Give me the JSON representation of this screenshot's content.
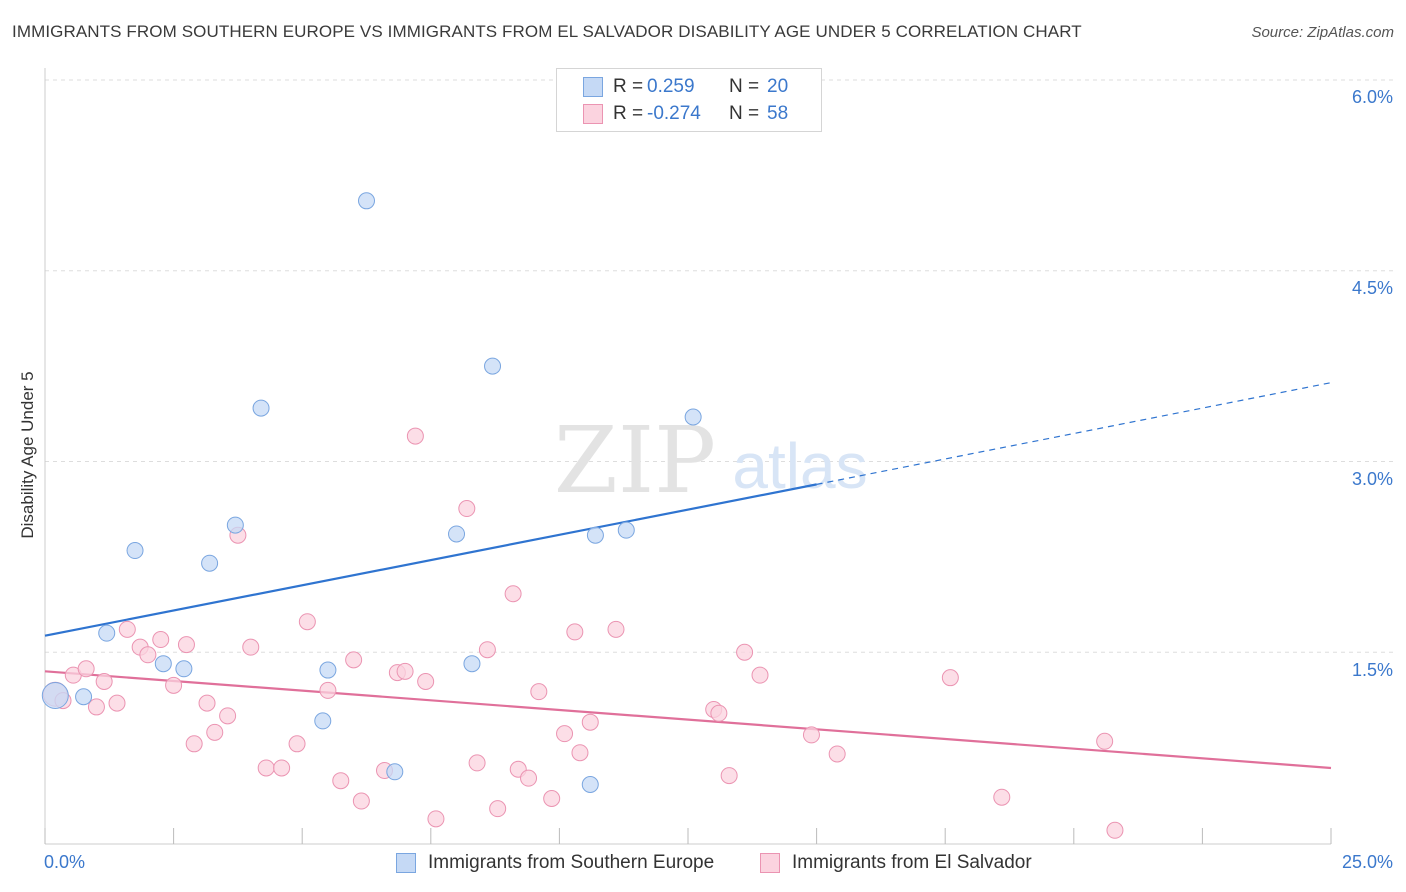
{
  "title": "IMMIGRANTS FROM SOUTHERN EUROPE VS IMMIGRANTS FROM EL SALVADOR DISABILITY AGE UNDER 5 CORRELATION CHART",
  "source": "Source: ZipAtlas.com",
  "watermark": {
    "zip": "ZIP",
    "atlas": "atlas"
  },
  "legend": [
    {
      "r_label": "R =",
      "r_value": "0.259",
      "n_label": "N =",
      "n_value": "20"
    },
    {
      "r_label": "R =",
      "r_value": "-0.274",
      "n_label": "N =",
      "n_value": "58"
    }
  ],
  "colors": {
    "series1_fill": "#c5d9f5",
    "series1_stroke": "#7aa6e0",
    "series1_line": "#2f74d0",
    "series2_fill": "#fbd3df",
    "series2_stroke": "#eb94b2",
    "series2_line": "#e0709a",
    "tick_text": "#3b78cc",
    "grid": "#dddddd"
  },
  "chart_data": {
    "type": "scatter",
    "ylabel": "Disability Age Under 5",
    "xlim": [
      0,
      25
    ],
    "ylim": [
      0,
      6.0
    ],
    "x_tick_labels": [
      "0.0%",
      "25.0%"
    ],
    "y_ticks": [
      1.5,
      3.0,
      4.5,
      6.0
    ],
    "y_tick_labels": [
      "1.5%",
      "3.0%",
      "4.5%",
      "6.0%"
    ],
    "grid": "horizontal dashed",
    "legend_position": "top-center",
    "series": [
      {
        "name": "Immigrants from Southern Europe",
        "points": [
          [
            0.2,
            1.16
          ],
          [
            0.75,
            1.15
          ],
          [
            1.2,
            1.65
          ],
          [
            1.75,
            2.3
          ],
          [
            2.3,
            1.41
          ],
          [
            2.7,
            1.37
          ],
          [
            3.2,
            2.2
          ],
          [
            3.7,
            2.5
          ],
          [
            4.2,
            3.42
          ],
          [
            5.4,
            0.96
          ],
          [
            5.5,
            1.36
          ],
          [
            6.25,
            5.05
          ],
          [
            6.8,
            0.56
          ],
          [
            8.0,
            2.43
          ],
          [
            8.3,
            1.41
          ],
          [
            8.7,
            3.75
          ],
          [
            10.6,
            0.46
          ],
          [
            10.7,
            2.42
          ],
          [
            11.3,
            2.46
          ],
          [
            12.6,
            3.35
          ]
        ],
        "trend": {
          "x1": 0,
          "y1": 1.63,
          "x2": 15,
          "y2": 2.82,
          "dashed_to_x": 25,
          "dashed_to_y": 3.62
        }
      },
      {
        "name": "Immigrants from El Salvador",
        "points": [
          [
            0.2,
            1.17
          ],
          [
            0.35,
            1.12
          ],
          [
            0.55,
            1.32
          ],
          [
            0.8,
            1.37
          ],
          [
            1.0,
            1.07
          ],
          [
            1.15,
            1.27
          ],
          [
            1.4,
            1.1
          ],
          [
            1.6,
            1.68
          ],
          [
            1.85,
            1.54
          ],
          [
            2.0,
            1.48
          ],
          [
            2.25,
            1.6
          ],
          [
            2.5,
            1.24
          ],
          [
            2.75,
            1.56
          ],
          [
            2.9,
            0.78
          ],
          [
            3.15,
            1.1
          ],
          [
            3.3,
            0.87
          ],
          [
            3.55,
            1.0
          ],
          [
            3.75,
            2.42
          ],
          [
            4.0,
            1.54
          ],
          [
            4.3,
            0.59
          ],
          [
            4.6,
            0.59
          ],
          [
            4.9,
            0.78
          ],
          [
            5.1,
            1.74
          ],
          [
            5.5,
            1.2
          ],
          [
            5.75,
            0.49
          ],
          [
            6.0,
            1.44
          ],
          [
            6.15,
            0.33
          ],
          [
            6.6,
            0.57
          ],
          [
            6.85,
            1.34
          ],
          [
            7.0,
            1.35
          ],
          [
            7.2,
            3.2
          ],
          [
            7.4,
            1.27
          ],
          [
            7.6,
            0.19
          ],
          [
            8.2,
            2.63
          ],
          [
            8.4,
            0.63
          ],
          [
            8.6,
            1.52
          ],
          [
            8.8,
            0.27
          ],
          [
            9.1,
            1.96
          ],
          [
            9.2,
            0.58
          ],
          [
            9.4,
            0.51
          ],
          [
            9.6,
            1.19
          ],
          [
            9.85,
            0.35
          ],
          [
            10.1,
            0.86
          ],
          [
            10.3,
            1.66
          ],
          [
            10.4,
            0.71
          ],
          [
            10.6,
            0.95
          ],
          [
            11.1,
            1.68
          ],
          [
            13.0,
            1.05
          ],
          [
            13.1,
            1.02
          ],
          [
            13.3,
            0.53
          ],
          [
            13.6,
            1.5
          ],
          [
            13.9,
            1.32
          ],
          [
            14.9,
            0.85
          ],
          [
            15.4,
            0.7
          ],
          [
            17.6,
            1.3
          ],
          [
            18.6,
            0.36
          ],
          [
            20.6,
            0.8
          ],
          [
            20.8,
            0.1
          ]
        ],
        "trend": {
          "x1": 0,
          "y1": 1.35,
          "x2": 25,
          "y2": 0.59
        }
      }
    ]
  }
}
